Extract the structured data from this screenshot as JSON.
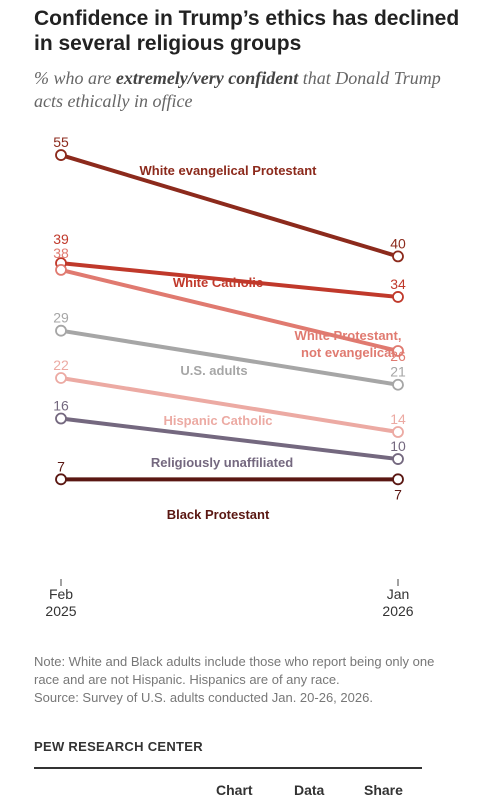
{
  "header": {
    "title": "Confidence in Trump’s ethics has declined in several religious groups",
    "subtitle_pre": "% who are ",
    "subtitle_emph": "extremely/very confident",
    "subtitle_post": " that Donald Trump acts ethically in office"
  },
  "chart_data": {
    "type": "line",
    "x": [
      "Feb 2025",
      "Jan 2026"
    ],
    "x_ticks": [
      {
        "line1": "Feb",
        "line2": "2025"
      },
      {
        "line1": "Jan",
        "line2": "2026"
      }
    ],
    "ylim": [
      0,
      60
    ],
    "grid": false,
    "legend": "inline labels",
    "series": [
      {
        "name": "White evangelical Protestant",
        "values": [
          55,
          40
        ],
        "color": "#8c2a1c"
      },
      {
        "name": "White Catholic",
        "values": [
          39,
          34
        ],
        "color": "#c0392b"
      },
      {
        "name": "White Protestant, not evangelical",
        "values": [
          38,
          26
        ],
        "color": "#e07a70"
      },
      {
        "name": "U.S. adults",
        "values": [
          29,
          21
        ],
        "color": "#a6a6a6"
      },
      {
        "name": "Hispanic Catholic",
        "values": [
          22,
          14
        ],
        "color": "#ecaaa3"
      },
      {
        "name": "Religiously unaffiliated",
        "values": [
          16,
          10
        ],
        "color": "#74687f"
      },
      {
        "name": "Black Protestant",
        "values": [
          7,
          7
        ],
        "color": "#5a1712"
      }
    ]
  },
  "note": {
    "text": "Note: White and Black adults include those who report being only one race and are not Hispanic. Hispanics are of any race.",
    "source": "Source: Survey of U.S. adults conducted Jan. 20-26, 2026."
  },
  "brand": "PEW RESEARCH CENTER",
  "tabs": {
    "chart": "Chart",
    "data": "Data",
    "share": "Share"
  }
}
